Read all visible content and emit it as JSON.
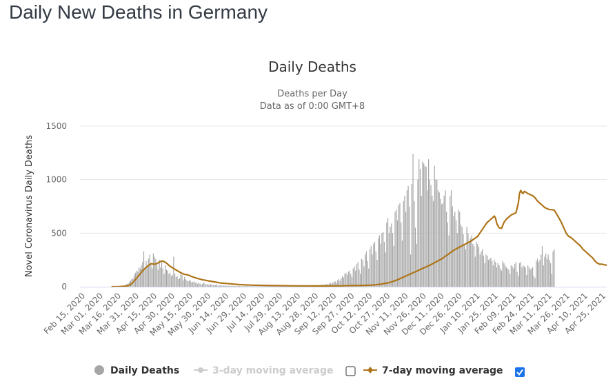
{
  "page": {
    "title": "Daily New Deaths in Germany"
  },
  "colors": {
    "bars": "#a6a6a6",
    "avg7": "#ae7418",
    "avg3_hidden": "#cccccc",
    "grid": "#e6e6e6",
    "axis": "#ccd6eb",
    "checkbox_checked": "#1a73e8"
  },
  "legend": {
    "items": [
      {
        "label": "Daily Deaths",
        "icon": "circle-icon",
        "active": true
      },
      {
        "label": "3-day moving average",
        "icon": "line-marker-icon",
        "active": false,
        "checkbox_checked": false
      },
      {
        "label": "7-day moving average",
        "icon": "line-marker-icon",
        "active": true,
        "checkbox_checked": true
      }
    ]
  },
  "chart_data": {
    "type": "bar",
    "title": "Daily Deaths",
    "subtitle": [
      "Deaths per Day",
      "Data as of 0:00 GMT+8"
    ],
    "xlabel": "",
    "ylabel": "Novel Coronavirus Daily Deaths",
    "ylim": [
      0,
      1500
    ],
    "yticks": [
      0,
      500,
      1000,
      1500
    ],
    "grid": true,
    "legend_position": "bottom",
    "x_start": "Feb 15, 2020",
    "x_tick_interval_days": 15,
    "xticks": [
      "Feb 15, 2020",
      "Mar 01, 2020",
      "Mar 16, 2020",
      "Mar 31, 2020",
      "Apr 15, 2020",
      "Apr 30, 2020",
      "May 15, 2020",
      "May 30, 2020",
      "Jun 14, 2020",
      "Jun 29, 2020",
      "Jul 14, 2020",
      "Jul 29, 2020",
      "Aug 13, 2020",
      "Aug 28, 2020",
      "Sep 12, 2020",
      "Sep 27, 2020",
      "Oct 12, 2020",
      "Oct 27, 2020",
      "Nov 11, 2020",
      "Nov 26, 2020",
      "Dec 11, 2020",
      "Dec 26, 2020",
      "Jan 10, 2021",
      "Jan 25, 2021",
      "Feb 09, 2021",
      "Feb 24, 2021",
      "Mar 11, 2021",
      "Mar 26, 2021",
      "Apr 10, 2021",
      "Apr 25, 2021"
    ],
    "series": [
      {
        "name": "Daily Deaths",
        "type": "bar",
        "start_day_offset": 24,
        "values": [
          0,
          0,
          1,
          0,
          2,
          0,
          3,
          2,
          4,
          5,
          8,
          12,
          20,
          25,
          30,
          45,
          60,
          70,
          80,
          110,
          130,
          150,
          140,
          180,
          170,
          200,
          230,
          330,
          170,
          240,
          200,
          260,
          300,
          220,
          170,
          310,
          280,
          260,
          200,
          160,
          250,
          180,
          230,
          170,
          120,
          200,
          160,
          150,
          120,
          130,
          100,
          110,
          280,
          120,
          90,
          100,
          70,
          80,
          120,
          110,
          60,
          90,
          70,
          60,
          50,
          60,
          55,
          40,
          45,
          50,
          35,
          40,
          25,
          35,
          30,
          20,
          25,
          40,
          30,
          20,
          25,
          15,
          20,
          25,
          15,
          18,
          12,
          15,
          20,
          10,
          12,
          15,
          10,
          8,
          12,
          10,
          8,
          6,
          10,
          8,
          6,
          8,
          5,
          7,
          6,
          5,
          8,
          6,
          5,
          4,
          6,
          5,
          4,
          5,
          6,
          4,
          3,
          5,
          4,
          3,
          5,
          4,
          3,
          4,
          5,
          3,
          4,
          3,
          5,
          4,
          3,
          4,
          3,
          5,
          4,
          3,
          2,
          4,
          3,
          5,
          4,
          3,
          6,
          4,
          3,
          5,
          4,
          6,
          3,
          5,
          4,
          6,
          5,
          3,
          6,
          5,
          4,
          7,
          5,
          4,
          6,
          8,
          5,
          6,
          7,
          10,
          8,
          9,
          12,
          10,
          8,
          12,
          15,
          12,
          10,
          15,
          20,
          18,
          15,
          22,
          25,
          20,
          30,
          35,
          28,
          40,
          45,
          50,
          35,
          60,
          70,
          55,
          80,
          100,
          85,
          120,
          130,
          110,
          140,
          150,
          120,
          90,
          170,
          190,
          150,
          210,
          230,
          160,
          120,
          260,
          250,
          190,
          300,
          330,
          240,
          170,
          350,
          380,
          300,
          400,
          420,
          330,
          250,
          450,
          480,
          400,
          500,
          510,
          420,
          320,
          600,
          640,
          500,
          560,
          590,
          500,
          380,
          700,
          720,
          620,
          760,
          780,
          600,
          430,
          800,
          850,
          700,
          900,
          940,
          750,
          300,
          960,
          1240,
          800,
          550,
          400,
          1000,
          1190,
          1100,
          850,
          1170,
          1150,
          1130,
          1120,
          900,
          1190,
          1000,
          950,
          850,
          800,
          1130,
          1000,
          1000,
          900,
          880,
          820,
          770,
          780,
          850,
          900,
          700,
          600,
          480,
          850,
          900,
          750,
          660,
          700,
          620,
          500,
          720,
          700,
          580,
          560,
          490,
          400,
          350,
          560,
          500,
          420,
          450,
          480,
          400,
          380,
          280,
          420,
          400,
          370,
          300,
          330,
          350,
          290,
          220,
          300,
          290,
          250,
          260,
          270,
          240,
          200,
          250,
          230,
          180,
          220,
          200,
          170,
          150,
          240,
          220,
          200,
          180,
          170,
          160,
          120,
          200,
          190,
          170,
          210,
          230,
          140,
          100,
          220,
          230,
          180,
          200,
          190,
          180,
          110,
          200,
          180,
          160,
          170,
          180,
          100,
          80,
          240,
          260,
          230,
          250,
          300,
          380,
          200,
          280,
          310,
          260,
          300,
          250,
          220,
          120,
          330,
          350
        ]
      },
      {
        "name": "7-day moving average",
        "type": "line",
        "points": [
          [
            24,
            0
          ],
          [
            30,
            1
          ],
          [
            35,
            4
          ],
          [
            38,
            10
          ],
          [
            40,
            20
          ],
          [
            42,
            40
          ],
          [
            45,
            80
          ],
          [
            48,
            120
          ],
          [
            50,
            150
          ],
          [
            53,
            180
          ],
          [
            55,
            200
          ],
          [
            57,
            215
          ],
          [
            60,
            210
          ],
          [
            62,
            215
          ],
          [
            64,
            230
          ],
          [
            66,
            240
          ],
          [
            68,
            235
          ],
          [
            70,
            220
          ],
          [
            73,
            190
          ],
          [
            76,
            170
          ],
          [
            79,
            150
          ],
          [
            82,
            130
          ],
          [
            85,
            115
          ],
          [
            88,
            110
          ],
          [
            91,
            95
          ],
          [
            95,
            80
          ],
          [
            100,
            65
          ],
          [
            105,
            55
          ],
          [
            110,
            45
          ],
          [
            115,
            35
          ],
          [
            120,
            30
          ],
          [
            125,
            25
          ],
          [
            130,
            20
          ],
          [
            140,
            15
          ],
          [
            150,
            12
          ],
          [
            160,
            10
          ],
          [
            180,
            8
          ],
          [
            200,
            7
          ],
          [
            215,
            8
          ],
          [
            225,
            10
          ],
          [
            235,
            12
          ],
          [
            240,
            14
          ],
          [
            245,
            18
          ],
          [
            250,
            25
          ],
          [
            255,
            35
          ],
          [
            258,
            45
          ],
          [
            262,
            60
          ],
          [
            266,
            80
          ],
          [
            270,
            100
          ],
          [
            275,
            125
          ],
          [
            280,
            150
          ],
          [
            285,
            175
          ],
          [
            290,
            200
          ],
          [
            295,
            230
          ],
          [
            300,
            260
          ],
          [
            305,
            300
          ],
          [
            310,
            340
          ],
          [
            315,
            370
          ],
          [
            320,
            400
          ],
          [
            325,
            430
          ],
          [
            330,
            470
          ],
          [
            333,
            520
          ],
          [
            336,
            570
          ],
          [
            338,
            600
          ],
          [
            340,
            620
          ],
          [
            342,
            640
          ],
          [
            344,
            660
          ],
          [
            345,
            640
          ],
          [
            346,
            590
          ],
          [
            348,
            550
          ],
          [
            350,
            545
          ],
          [
            352,
            600
          ],
          [
            354,
            630
          ],
          [
            356,
            650
          ],
          [
            358,
            670
          ],
          [
            360,
            680
          ],
          [
            362,
            690
          ],
          [
            364,
            780
          ],
          [
            365,
            870
          ],
          [
            366,
            900
          ],
          [
            367,
            880
          ],
          [
            368,
            870
          ],
          [
            369,
            890
          ],
          [
            370,
            885
          ],
          [
            372,
            870
          ],
          [
            374,
            860
          ],
          [
            376,
            850
          ],
          [
            378,
            830
          ],
          [
            380,
            800
          ],
          [
            382,
            780
          ],
          [
            384,
            760
          ],
          [
            386,
            740
          ],
          [
            388,
            730
          ],
          [
            390,
            720
          ],
          [
            392,
            720
          ],
          [
            394,
            715
          ],
          [
            396,
            680
          ],
          [
            398,
            640
          ],
          [
            400,
            600
          ],
          [
            402,
            550
          ],
          [
            404,
            500
          ],
          [
            406,
            470
          ],
          [
            408,
            460
          ],
          [
            410,
            440
          ],
          [
            412,
            420
          ],
          [
            414,
            400
          ],
          [
            416,
            380
          ],
          [
            418,
            350
          ],
          [
            420,
            330
          ],
          [
            422,
            310
          ],
          [
            424,
            290
          ],
          [
            426,
            270
          ],
          [
            428,
            240
          ],
          [
            430,
            220
          ],
          [
            432,
            210
          ],
          [
            434,
            210
          ],
          [
            436,
            205
          ],
          [
            438,
            200
          ]
        ]
      }
    ]
  }
}
